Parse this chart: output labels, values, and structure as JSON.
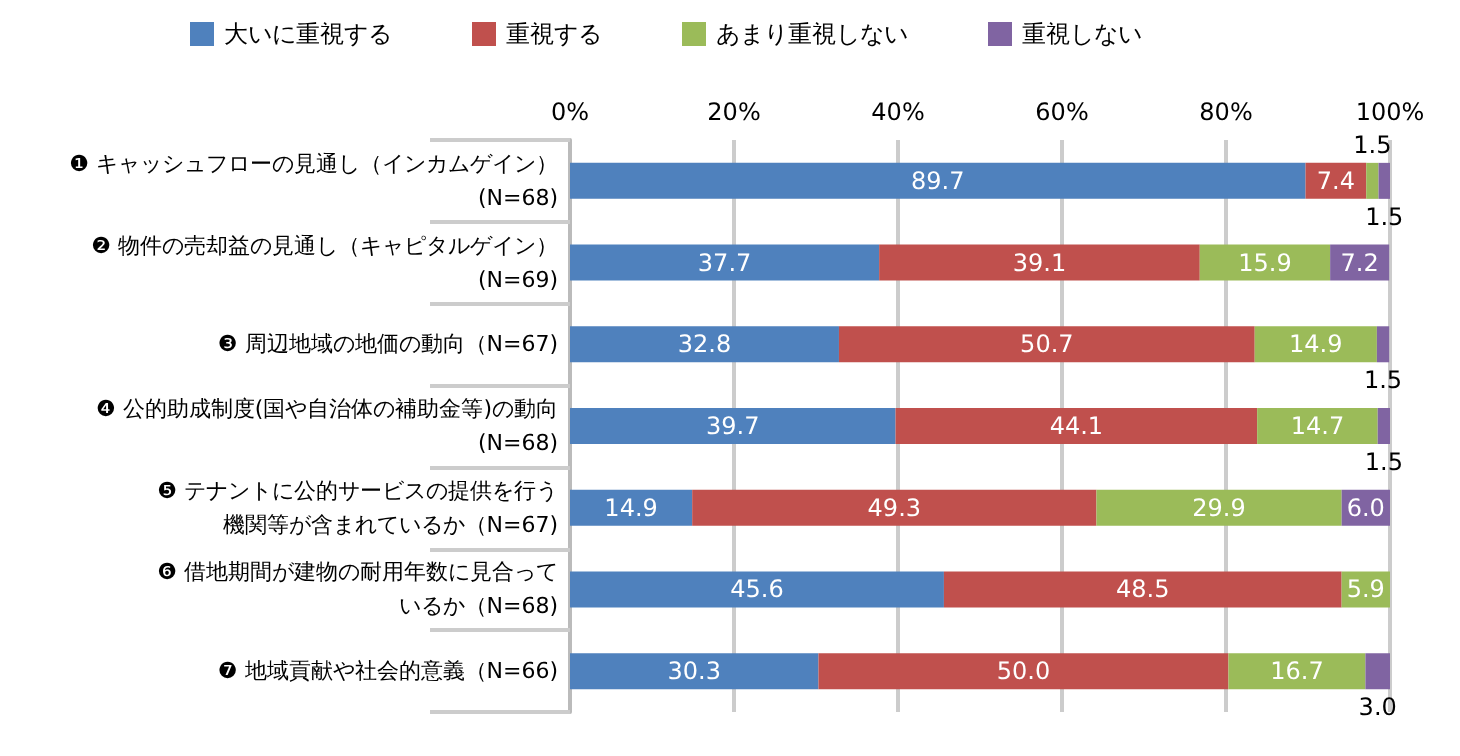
{
  "chart_data": {
    "type": "bar",
    "orientation": "horizontal",
    "stacked": true,
    "legend": "top",
    "grid": "x",
    "categories": [
      "❶ キャッシュフローの見通し（インカムゲイン）\n(N=68)",
      "❷ 物件の売却益の見通し（キャピタルゲイン）\n(N=69)",
      "❸ 周辺地域の地価の動向（N=67)",
      "❹ 公的助成制度(国や自治体の補助金等)の動向\n(N=68)",
      "❺ テナントに公的サービスの提供を行う機関等が含まれているか（N=67)",
      "❻ 借地期間が建物の耐用年数に見合っているか（N=68)",
      "❼ 地域貢献や社会的意義（N=66)"
    ],
    "xlim": [
      0,
      100
    ],
    "xticks": [
      {
        "value": 0,
        "label": "0%"
      },
      {
        "value": 20,
        "label": "20%"
      },
      {
        "value": 40,
        "label": "40%"
      },
      {
        "value": 60,
        "label": "60%"
      },
      {
        "value": 80,
        "label": "80%"
      },
      {
        "value": 100,
        "label": "100%"
      }
    ],
    "series": [
      {
        "name": "大いに重視する",
        "color": "#4f81bd",
        "values": [
          89.7,
          37.7,
          32.8,
          39.7,
          14.9,
          45.6,
          30.3
        ],
        "value_labels": [
          "89.7",
          "37.7",
          "32.8",
          "39.7",
          "14.9",
          "45.6",
          "30.3"
        ]
      },
      {
        "name": "重視する",
        "color": "#c0504d",
        "values": [
          7.4,
          39.1,
          50.7,
          44.1,
          49.3,
          48.5,
          50.0
        ],
        "value_labels": [
          "7.4",
          "39.1",
          "50.7",
          "44.1",
          "49.3",
          "48.5",
          "50.0"
        ]
      },
      {
        "name": "あまり重視しない",
        "color": "#9bbb59",
        "values": [
          1.5,
          15.9,
          14.9,
          14.7,
          29.9,
          5.9,
          16.7
        ],
        "value_labels": [
          "1.5",
          "15.9",
          "14.9",
          "14.7",
          "29.9",
          "5.9",
          "16.7"
        ]
      },
      {
        "name": "重視しない",
        "color": "#8064a2",
        "values": [
          1.5,
          7.2,
          1.5,
          1.5,
          6.0,
          null,
          3.0
        ],
        "value_labels": [
          "1.5",
          "7.2",
          "1.5",
          "1.5",
          "6.0",
          null,
          "3.0"
        ]
      }
    ]
  }
}
